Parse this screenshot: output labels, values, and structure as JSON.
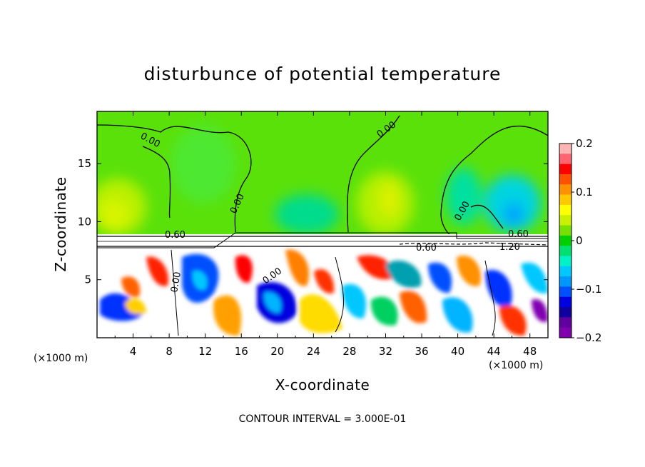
{
  "chart_data": {
    "type": "heatmap",
    "title": "disturbunce of potential temperature",
    "xlabel": "X-coordinate",
    "ylabel": "Z-coordinate",
    "x_unit_label": "(×1000 m)",
    "x_ticks": [
      4,
      8,
      12,
      16,
      20,
      24,
      28,
      32,
      36,
      40,
      44,
      48
    ],
    "y_ticks": [
      5,
      10,
      15
    ],
    "xlim": [
      0,
      50
    ],
    "ylim": [
      0,
      19.5
    ],
    "colorbar": {
      "range": [
        -0.2,
        0.2
      ],
      "ticks": [
        "0.2",
        "0.1",
        "0",
        "−0.1",
        "−0.2"
      ],
      "tick_values": [
        0.2,
        0.1,
        0,
        -0.1,
        -0.2
      ],
      "colors": [
        "#ffb4b4",
        "#ff6470",
        "#ff0000",
        "#ff5000",
        "#ff9000",
        "#ffc800",
        "#ffff00",
        "#c8f000",
        "#78e000",
        "#00d000",
        "#00e070",
        "#00f0c8",
        "#00c8ff",
        "#0096ff",
        "#0050ff",
        "#0000e0",
        "#1000a0",
        "#6000a0",
        "#8000b0"
      ]
    },
    "contour_labels": [
      "0.00",
      "0.00",
      "0.00",
      "0.00",
      "0.00",
      "0.00",
      "0.60",
      "0.60",
      "0.60",
      "1.20"
    ],
    "contour_interval": "CONTOUR INTERVAL = 3.000E-01"
  }
}
